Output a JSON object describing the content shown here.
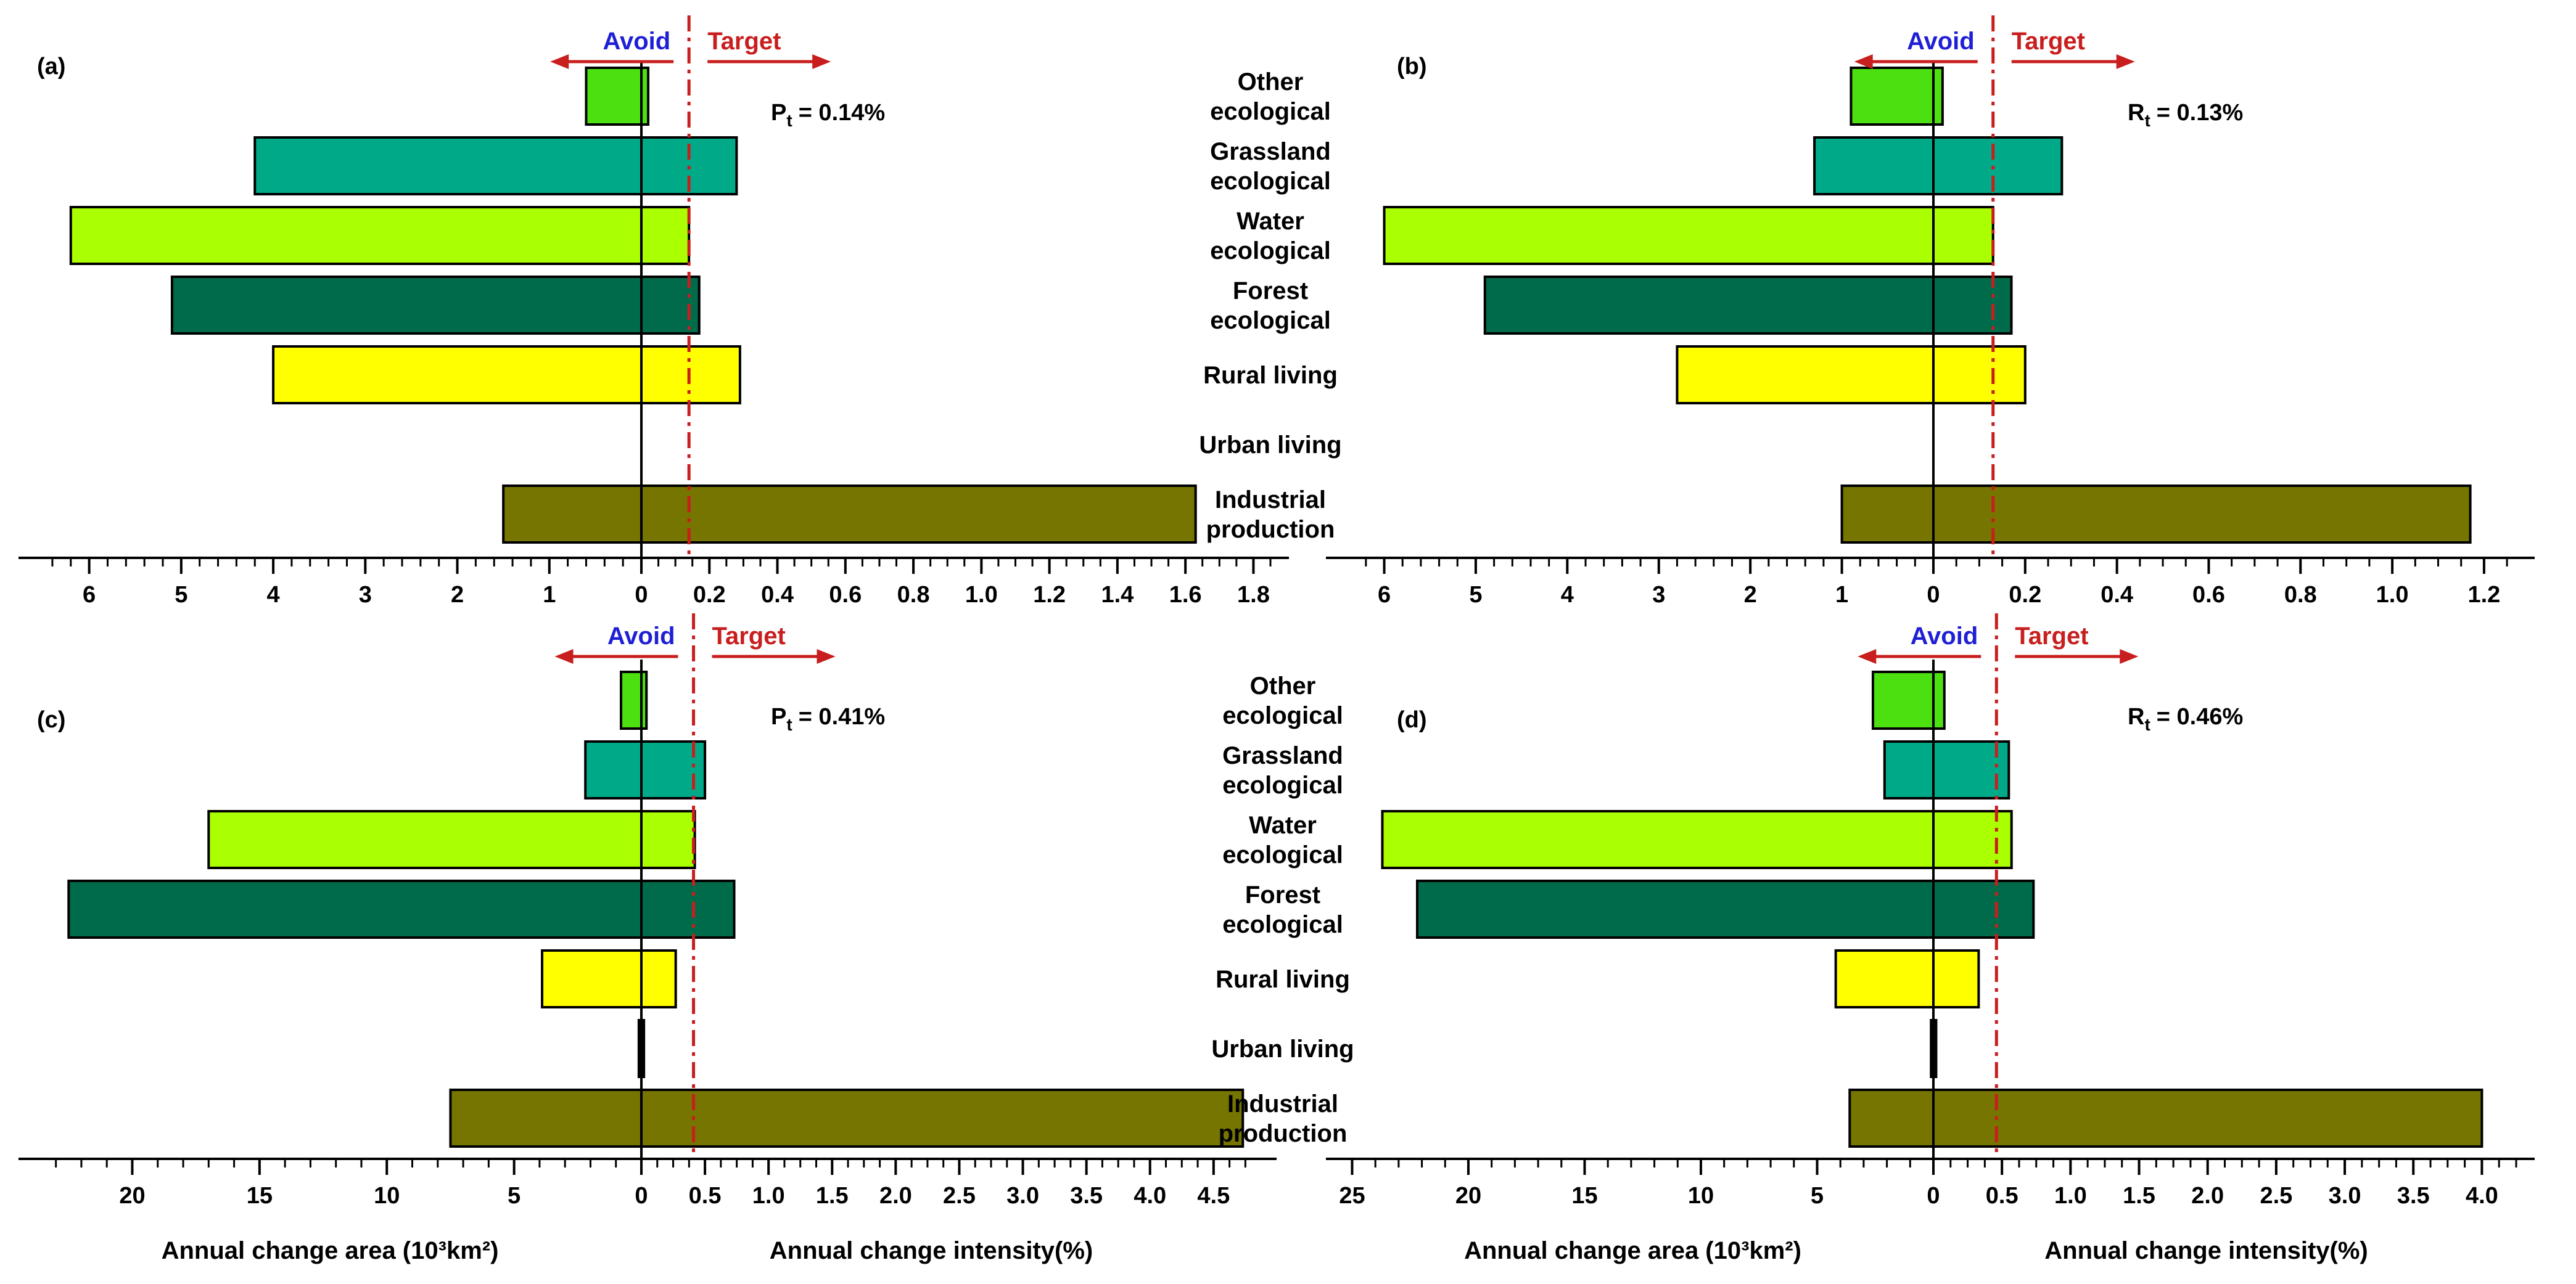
{
  "colors": {
    "Other ecological": "#4de010",
    "Grassland ecological": "#00aa88",
    "Water ecological": "#aaff00",
    "Forest ecological": "#006b4b",
    "Rural living": "#ffff00",
    "Urban living": "#111111",
    "Industrial production": "#757500",
    "avoid_text": "#1f1fd6",
    "target": "#c81e1e"
  },
  "common": {
    "avoid": "Avoid",
    "target": "Target"
  },
  "axis_titles": {
    "area": "Annual change area (10³km²)",
    "intensity": "Annual change intensity(%)"
  },
  "chart_data": [
    {
      "type": "bar",
      "panel": "(a)",
      "stat": "Pt = 0.14%",
      "stat_symbol": "P",
      "stat_sub": "t",
      "stat_value": "= 0.14%",
      "categories": [
        {
          "lines": [
            "Other",
            "ecological"
          ],
          "name": "Other ecological"
        },
        {
          "lines": [
            "Grassland",
            "ecological"
          ],
          "name": "Grassland ecological"
        },
        {
          "lines": [
            "Water",
            "ecological"
          ],
          "name": "Water ecological"
        },
        {
          "lines": [
            "Forest",
            "ecological"
          ],
          "name": "Forest ecological"
        },
        {
          "lines": [
            "Rural living"
          ],
          "name": "Rural living"
        },
        {
          "lines": [
            "Urban living"
          ],
          "name": "Urban living"
        },
        {
          "lines": [
            "Industrial",
            "production"
          ],
          "name": "Industrial production"
        }
      ],
      "area": [
        0.6,
        4.2,
        6.2,
        5.1,
        4.0,
        0,
        1.5
      ],
      "intensity": [
        0.02,
        0.28,
        0.14,
        0.17,
        0.29,
        0,
        1.63
      ],
      "target_line": 0.14,
      "area_ticks": [
        "6",
        "5",
        "4",
        "3",
        "2",
        "1",
        "0"
      ],
      "intensity_ticks": [
        "0.2",
        "0.4",
        "0.6",
        "0.8",
        "1.0",
        "1.2",
        "1.4",
        "1.6",
        "1.8"
      ],
      "area_max": 6.5,
      "intensity_max": 1.85
    },
    {
      "type": "bar",
      "panel": "(b)",
      "stat": "Rt = 0.13%",
      "stat_symbol": "R",
      "stat_sub": "t",
      "stat_value": "= 0.13%",
      "categories": [
        {
          "lines": [],
          "name": "Other ecological"
        },
        {
          "lines": [],
          "name": "Grassland ecological"
        },
        {
          "lines": [],
          "name": "Water ecological"
        },
        {
          "lines": [],
          "name": "Forest ecological"
        },
        {
          "lines": [],
          "name": "Rural living"
        },
        {
          "lines": [],
          "name": "Urban living"
        },
        {
          "lines": [],
          "name": "Industrial production"
        }
      ],
      "area": [
        0.9,
        1.3,
        6.0,
        4.9,
        2.8,
        0,
        1.0
      ],
      "intensity": [
        0.02,
        0.28,
        0.13,
        0.17,
        0.2,
        0,
        1.17
      ],
      "target_line": 0.13,
      "area_ticks": [
        "6",
        "5",
        "4",
        "3",
        "2",
        "1",
        "0"
      ],
      "intensity_ticks": [
        "0.2",
        "0.4",
        "0.6",
        "0.8",
        "1.0",
        "1.2"
      ],
      "area_max": 6.3,
      "intensity_max": 1.27
    },
    {
      "type": "bar",
      "panel": "(c)",
      "stat": "Pt = 0.41%",
      "stat_symbol": "P",
      "stat_sub": "t",
      "stat_value": "= 0.41%",
      "categories": [
        {
          "lines": [
            "Other",
            "ecological"
          ],
          "name": "Other ecological"
        },
        {
          "lines": [
            "Grassland",
            "ecological"
          ],
          "name": "Grassland ecological"
        },
        {
          "lines": [
            "Water",
            "ecological"
          ],
          "name": "Water ecological"
        },
        {
          "lines": [
            "Forest",
            "ecological"
          ],
          "name": "Forest ecological"
        },
        {
          "lines": [
            "Rural living"
          ],
          "name": "Rural living"
        },
        {
          "lines": [
            "Urban living"
          ],
          "name": "Urban living"
        },
        {
          "lines": [
            "Industrial",
            "production"
          ],
          "name": "Industrial production"
        }
      ],
      "area": [
        0.8,
        2.2,
        17.0,
        22.5,
        3.9,
        0.1,
        7.5
      ],
      "intensity": [
        0.04,
        0.5,
        0.42,
        0.73,
        0.27,
        0.02,
        4.73
      ],
      "target_line": 0.41,
      "area_ticks": [
        "20",
        "15",
        "10",
        "5",
        "0"
      ],
      "intensity_ticks": [
        "0.5",
        "1.0",
        "1.5",
        "2.0",
        "2.5",
        "3.0",
        "3.5",
        "4.0",
        "4.5"
      ],
      "area_max": 23.5,
      "intensity_max": 4.85
    },
    {
      "type": "bar",
      "panel": "(d)",
      "stat": "Rt = 0.46%",
      "stat_symbol": "R",
      "stat_sub": "t",
      "stat_value": "= 0.46%",
      "categories": [
        {
          "lines": [],
          "name": "Other ecological"
        },
        {
          "lines": [],
          "name": "Grassland ecological"
        },
        {
          "lines": [],
          "name": "Water ecological"
        },
        {
          "lines": [],
          "name": "Forest ecological"
        },
        {
          "lines": [],
          "name": "Rural living"
        },
        {
          "lines": [],
          "name": "Urban living"
        },
        {
          "lines": [],
          "name": "Industrial production"
        }
      ],
      "area": [
        2.6,
        2.1,
        23.7,
        22.2,
        4.2,
        0.1,
        3.6
      ],
      "intensity": [
        0.08,
        0.55,
        0.57,
        0.73,
        0.33,
        0.02,
        4.0
      ],
      "target_line": 0.46,
      "area_ticks": [
        "25",
        "20",
        "15",
        "10",
        "5",
        "0"
      ],
      "intensity_ticks": [
        "0.5",
        "1.0",
        "1.5",
        "2.0",
        "2.5",
        "3.0",
        "3.5",
        "4.0"
      ],
      "area_max": 24.8,
      "intensity_max": 4.25
    }
  ]
}
